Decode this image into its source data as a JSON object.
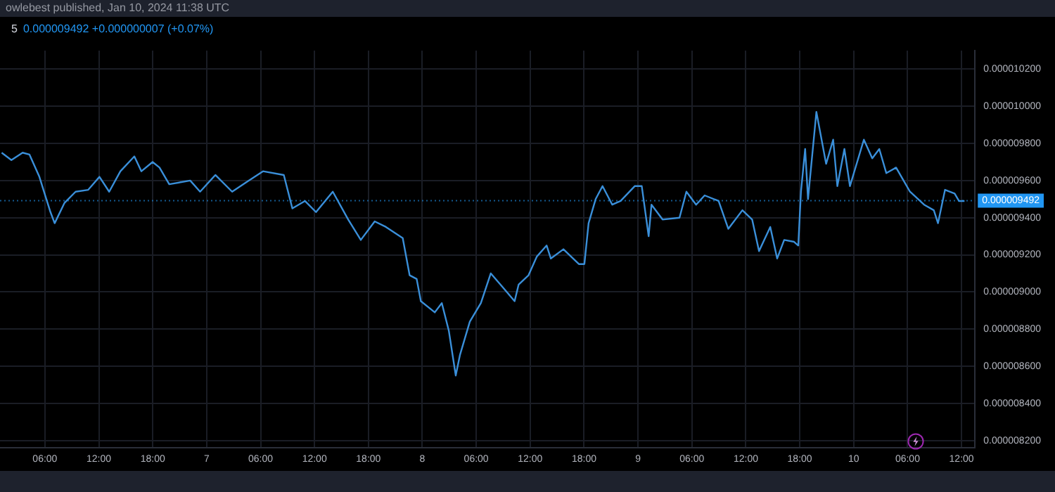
{
  "chart_data": {
    "type": "line",
    "title": "5",
    "subtitle": "0.000009492 +0.000000007 (+0.07%)",
    "annotations": [
      "owlebest published, Jan 10, 2024 11:38 UTC"
    ],
    "x": [
      "2024-01-06T01:11",
      "2024-01-06T02:16",
      "2024-01-06T03:31",
      "2024-01-06T04:17",
      "2024-01-06T05:23",
      "2024-01-06T05:50",
      "2024-01-06T06:37",
      "2024-01-06T07:05",
      "2024-01-06T08:11",
      "2024-01-06T09:25",
      "2024-01-06T10:49",
      "2024-01-06T12:04",
      "2024-01-06T13:09",
      "2024-01-06T14:24",
      "2024-01-06T15:57",
      "2024-01-06T16:44",
      "2024-01-06T17:59",
      "2024-01-06T18:45",
      "2024-01-06T19:50",
      "2024-01-06T22:10",
      "2024-01-06T23:16",
      "2024-01-07T00:58",
      "2024-01-07T02:50",
      "2024-01-07T04:23",
      "2024-01-07T06:16",
      "2024-01-07T08:35",
      "2024-01-07T09:32",
      "2024-01-07T10:56",
      "2024-01-07T12:10",
      "2024-01-07T14:02",
      "2024-01-07T15:45",
      "2024-01-07T17:09",
      "2024-01-07T18:42",
      "2024-01-07T19:57",
      "2024-01-07T21:49",
      "2024-01-07T22:35",
      "2024-01-07T23:22",
      "2024-01-07T23:50",
      "2024-01-08T01:23",
      "2024-01-08T02:10",
      "2024-01-08T02:57",
      "2024-01-08T03:43",
      "2024-01-08T04:11",
      "2024-01-08T05:17",
      "2024-01-08T06:31",
      "2024-01-08T07:37",
      "2024-01-08T08:52",
      "2024-01-08T10:16",
      "2024-01-08T10:43",
      "2024-01-08T11:49",
      "2024-01-08T12:44",
      "2024-01-08T13:50",
      "2024-01-08T14:18",
      "2024-01-08T15:42",
      "2024-01-08T17:25",
      "2024-01-08T18:02",
      "2024-01-08T18:30",
      "2024-01-08T19:17",
      "2024-01-08T20:03",
      "2024-01-08T21:08",
      "2024-01-08T22:04",
      "2024-01-08T23:38",
      "2024-01-09T00:25",
      "2024-01-09T01:11",
      "2024-01-09T01:30",
      "2024-01-09T02:44",
      "2024-01-09T04:37",
      "2024-01-09T05:23",
      "2024-01-09T06:28",
      "2024-01-09T07:25",
      "2024-01-09T08:58",
      "2024-01-09T10:03",
      "2024-01-09T11:37",
      "2024-01-09T12:42",
      "2024-01-09T13:28",
      "2024-01-09T14:43",
      "2024-01-09T15:29",
      "2024-01-09T16:16",
      "2024-01-09T17:22",
      "2024-01-09T17:50",
      "2024-01-09T18:08",
      "2024-01-09T18:36",
      "2024-01-09T18:55",
      "2024-01-09T19:51",
      "2024-01-09T20:56",
      "2024-01-09T21:43",
      "2024-01-09T22:11",
      "2024-01-09T22:58",
      "2024-01-09T23:35",
      "2024-01-10T01:08",
      "2024-01-10T02:04",
      "2024-01-10T02:51",
      "2024-01-10T03:38",
      "2024-01-10T04:43",
      "2024-01-10T06:16",
      "2024-01-10T07:50",
      "2024-01-10T08:55",
      "2024-01-10T09:23",
      "2024-01-10T10:10",
      "2024-01-10T11:14",
      "2024-01-10T11:43",
      "2024-01-10T12:20"
    ],
    "series": [
      {
        "color": "#3a8fd9",
        "values": [
          9.75e-06,
          9.71e-06,
          9.75e-06,
          9.74e-06,
          9.62e-06,
          9.55e-06,
          9.43e-06,
          9.37e-06,
          9.48e-06,
          9.54e-06,
          9.55e-06,
          9.62e-06,
          9.54e-06,
          9.65e-06,
          9.73e-06,
          9.65e-06,
          9.7e-06,
          9.67e-06,
          9.58e-06,
          9.6e-06,
          9.54e-06,
          9.63e-06,
          9.54e-06,
          9.59e-06,
          9.65e-06,
          9.63e-06,
          9.45e-06,
          9.49e-06,
          9.43e-06,
          9.54e-06,
          9.39e-06,
          9.28e-06,
          9.38e-06,
          9.35e-06,
          9.29e-06,
          9.09e-06,
          9.07e-06,
          8.95e-06,
          8.89e-06,
          8.94e-06,
          8.79e-06,
          8.55e-06,
          8.66e-06,
          8.84e-06,
          8.94e-06,
          9.1e-06,
          9.03e-06,
          8.95e-06,
          9.04e-06,
          9.09e-06,
          9.19e-06,
          9.25e-06,
          9.18e-06,
          9.23e-06,
          9.15e-06,
          9.15e-06,
          9.37e-06,
          9.5e-06,
          9.57e-06,
          9.47e-06,
          9.49e-06,
          9.57e-06,
          9.57e-06,
          9.3e-06,
          9.47e-06,
          9.39e-06,
          9.4e-06,
          9.54e-06,
          9.47e-06,
          9.52e-06,
          9.49e-06,
          9.34e-06,
          9.44e-06,
          9.39e-06,
          9.22e-06,
          9.35e-06,
          9.18e-06,
          9.28e-06,
          9.27e-06,
          9.25e-06,
          9.54e-06,
          9.77e-06,
          9.5e-06,
          9.97e-06,
          9.69e-06,
          9.82e-06,
          9.57e-06,
          9.77e-06,
          9.57e-06,
          9.82e-06,
          9.72e-06,
          9.77e-06,
          9.64e-06,
          9.67e-06,
          9.54e-06,
          9.47e-06,
          9.44e-06,
          9.37e-06,
          9.55e-06,
          9.53e-06,
          9.49e-06,
          9.49e-06
        ]
      }
    ],
    "xlim": [
      "2024-01-06T01:00",
      "2024-01-10T13:30"
    ],
    "xticks": [
      {
        "value": "2024-01-06T06:00",
        "label": "06:00"
      },
      {
        "value": "2024-01-06T12:00",
        "label": "12:00"
      },
      {
        "value": "2024-01-06T18:00",
        "label": "18:00"
      },
      {
        "value": "2024-01-07T00:00",
        "label": "7"
      },
      {
        "value": "2024-01-07T06:00",
        "label": "06:00"
      },
      {
        "value": "2024-01-07T12:00",
        "label": "12:00"
      },
      {
        "value": "2024-01-07T18:00",
        "label": "18:00"
      },
      {
        "value": "2024-01-08T00:00",
        "label": "8"
      },
      {
        "value": "2024-01-08T06:00",
        "label": "06:00"
      },
      {
        "value": "2024-01-08T12:00",
        "label": "12:00"
      },
      {
        "value": "2024-01-08T18:00",
        "label": "18:00"
      },
      {
        "value": "2024-01-09T00:00",
        "label": "9"
      },
      {
        "value": "2024-01-09T06:00",
        "label": "06:00"
      },
      {
        "value": "2024-01-09T12:00",
        "label": "12:00"
      },
      {
        "value": "2024-01-09T18:00",
        "label": "18:00"
      },
      {
        "value": "2024-01-10T00:00",
        "label": "10"
      },
      {
        "value": "2024-01-10T06:00",
        "label": "06:00"
      },
      {
        "value": "2024-01-10T12:00",
        "label": "12:00"
      }
    ],
    "ylim": [
      8.16e-06,
      1.03e-05
    ],
    "yticks": [
      {
        "value": 8.2e-06,
        "label": "0.000008200"
      },
      {
        "value": 8.4e-06,
        "label": "0.000008400"
      },
      {
        "value": 8.6e-06,
        "label": "0.000008600"
      },
      {
        "value": 8.8e-06,
        "label": "0.000008800"
      },
      {
        "value": 9e-06,
        "label": "0.000009000"
      },
      {
        "value": 9.2e-06,
        "label": "0.000009200"
      },
      {
        "value": 9.4e-06,
        "label": "0.000009400"
      },
      {
        "value": 9.6e-06,
        "label": "0.000009600"
      },
      {
        "value": 9.8e-06,
        "label": "0.000009800"
      },
      {
        "value": 1e-05,
        "label": "0.000010000"
      },
      {
        "value": 1.02e-05,
        "label": "0.000010200"
      }
    ],
    "ref_lines": [
      {
        "axis": "y",
        "value": 9.492e-06,
        "label": "0.000009492",
        "color": "#2196f3",
        "line_style": "dotted"
      }
    ],
    "grid": true
  }
}
